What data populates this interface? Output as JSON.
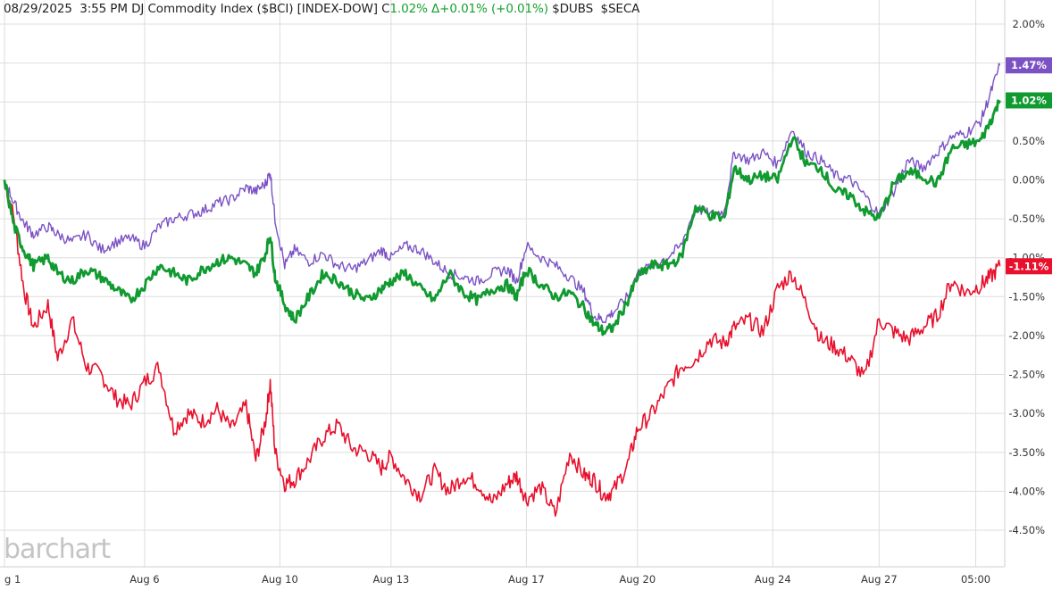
{
  "header": {
    "date": "08/29/2025",
    "time": "3:55 PM",
    "name": "DJ Commodity Index ($BCI)",
    "exchange": "[INDEX-DOW]",
    "close_label": "C",
    "close_value": "1.02%",
    "change_label": "Δ",
    "change_value": "+0.01% (+0.01%)",
    "compare1": "$DUBS",
    "compare2": "$SECA"
  },
  "watermark": "barchart",
  "colors": {
    "bci": "#109a30",
    "dubs": "#7b52c4",
    "seca": "#e8102c",
    "grid": "#dddddd",
    "axis_text": "#333333"
  },
  "chart_data": {
    "type": "line",
    "ylim": [
      -4.75,
      2.0
    ],
    "y_ticks": [
      "2.00%",
      "1.50%",
      "1.00%",
      "0.50%",
      "0.00%",
      "-0.50%",
      "-1.00%",
      "-1.50%",
      "-2.00%",
      "-2.50%",
      "-3.00%",
      "-3.50%",
      "-4.00%",
      "-4.50%"
    ],
    "y_tick_values": [
      2.0,
      1.5,
      1.0,
      0.5,
      0.0,
      -0.5,
      -1.0,
      -1.5,
      -2.0,
      -2.5,
      -3.0,
      -3.5,
      -4.0,
      -4.5
    ],
    "x_ticks": [
      "g 1",
      "Aug 6",
      "Aug 10",
      "Aug 13",
      "Aug 17",
      "Aug 20",
      "Aug 24",
      "Aug 27",
      "05:00"
    ],
    "x_tick_values": [
      0.0,
      1.45,
      2.85,
      4.0,
      5.4,
      6.55,
      7.95,
      9.05,
      10.05
    ],
    "xlim": [
      0.0,
      10.35
    ],
    "series": [
      {
        "key": "dubs",
        "name": "$DUBS",
        "end_label": "1.47%",
        "x": [
          0,
          0.1,
          0.2,
          0.3,
          0.45,
          0.55,
          0.7,
          0.85,
          1.0,
          1.15,
          1.3,
          1.45,
          1.6,
          1.75,
          1.9,
          2.05,
          2.2,
          2.35,
          2.5,
          2.6,
          2.7,
          2.75,
          2.8,
          2.9,
          3.0,
          3.15,
          3.3,
          3.45,
          3.6,
          3.75,
          3.9,
          4.0,
          4.15,
          4.3,
          4.45,
          4.6,
          4.75,
          4.9,
          5.05,
          5.2,
          5.3,
          5.4,
          5.55,
          5.7,
          5.85,
          6.0,
          6.1,
          6.2,
          6.3,
          6.45,
          6.55,
          6.7,
          6.85,
          7.0,
          7.15,
          7.3,
          7.45,
          7.55,
          7.7,
          7.85,
          8.0,
          8.15,
          8.3,
          8.45,
          8.6,
          8.75,
          8.9,
          9.05,
          9.2,
          9.35,
          9.5,
          9.65,
          9.8,
          9.95,
          10.1,
          10.2,
          10.3
        ],
        "values": [
          0.0,
          -0.3,
          -0.55,
          -0.7,
          -0.6,
          -0.7,
          -0.8,
          -0.7,
          -0.9,
          -0.8,
          -0.75,
          -0.85,
          -0.6,
          -0.5,
          -0.45,
          -0.4,
          -0.3,
          -0.25,
          -0.1,
          -0.15,
          -0.05,
          0.1,
          -0.5,
          -1.1,
          -0.9,
          -1.05,
          -0.95,
          -1.1,
          -1.15,
          -1.05,
          -0.9,
          -1.0,
          -0.85,
          -0.9,
          -1.05,
          -1.2,
          -1.25,
          -1.3,
          -1.2,
          -1.15,
          -1.3,
          -0.85,
          -1.0,
          -1.1,
          -1.25,
          -1.45,
          -1.75,
          -1.8,
          -1.7,
          -1.5,
          -1.2,
          -1.1,
          -1.0,
          -0.85,
          -0.35,
          -0.45,
          -0.4,
          0.35,
          0.25,
          0.35,
          0.2,
          0.65,
          0.35,
          0.25,
          0.05,
          0.0,
          -0.2,
          -0.45,
          -0.15,
          0.25,
          0.15,
          0.35,
          0.55,
          0.6,
          0.75,
          1.1,
          1.47
        ]
      },
      {
        "key": "bci",
        "name": "$BCI",
        "end_label": "1.02%",
        "x": [
          0,
          0.1,
          0.2,
          0.3,
          0.45,
          0.55,
          0.7,
          0.85,
          1.0,
          1.15,
          1.3,
          1.45,
          1.6,
          1.75,
          1.9,
          2.05,
          2.2,
          2.35,
          2.5,
          2.6,
          2.7,
          2.75,
          2.8,
          2.9,
          3.0,
          3.15,
          3.3,
          3.45,
          3.6,
          3.75,
          3.9,
          4.0,
          4.15,
          4.3,
          4.45,
          4.6,
          4.75,
          4.9,
          5.05,
          5.2,
          5.3,
          5.4,
          5.55,
          5.7,
          5.85,
          6.0,
          6.1,
          6.2,
          6.3,
          6.45,
          6.55,
          6.7,
          6.85,
          7.0,
          7.15,
          7.3,
          7.45,
          7.55,
          7.7,
          7.85,
          8.0,
          8.15,
          8.3,
          8.45,
          8.6,
          8.75,
          8.9,
          9.05,
          9.2,
          9.35,
          9.5,
          9.65,
          9.8,
          9.95,
          10.1,
          10.2,
          10.3
        ],
        "values": [
          0.0,
          -0.6,
          -0.9,
          -1.1,
          -1.0,
          -1.2,
          -1.3,
          -1.15,
          -1.25,
          -1.4,
          -1.55,
          -1.35,
          -1.1,
          -1.2,
          -1.3,
          -1.15,
          -1.05,
          -1.0,
          -1.1,
          -1.2,
          -0.95,
          -0.7,
          -1.25,
          -1.6,
          -1.8,
          -1.5,
          -1.2,
          -1.3,
          -1.45,
          -1.55,
          -1.4,
          -1.3,
          -1.2,
          -1.4,
          -1.55,
          -1.2,
          -1.45,
          -1.55,
          -1.4,
          -1.35,
          -1.5,
          -1.15,
          -1.35,
          -1.5,
          -1.45,
          -1.65,
          -1.85,
          -1.95,
          -1.9,
          -1.55,
          -1.25,
          -1.1,
          -1.1,
          -1.0,
          -0.35,
          -0.45,
          -0.5,
          0.15,
          0.0,
          0.05,
          0.0,
          0.55,
          0.2,
          0.15,
          -0.15,
          -0.2,
          -0.4,
          -0.5,
          -0.05,
          0.1,
          0.05,
          -0.05,
          0.4,
          0.45,
          0.5,
          0.75,
          1.02
        ]
      },
      {
        "key": "seca",
        "name": "$SECA",
        "end_label": "-1.11%",
        "x": [
          0,
          0.1,
          0.2,
          0.3,
          0.45,
          0.55,
          0.7,
          0.85,
          1.0,
          1.15,
          1.3,
          1.45,
          1.6,
          1.75,
          1.9,
          2.05,
          2.2,
          2.35,
          2.5,
          2.6,
          2.7,
          2.75,
          2.8,
          2.9,
          3.0,
          3.15,
          3.3,
          3.45,
          3.6,
          3.75,
          3.9,
          4.0,
          4.15,
          4.3,
          4.45,
          4.6,
          4.75,
          4.9,
          5.05,
          5.2,
          5.3,
          5.4,
          5.55,
          5.7,
          5.85,
          6.0,
          6.1,
          6.2,
          6.3,
          6.45,
          6.55,
          6.7,
          6.85,
          7.0,
          7.15,
          7.3,
          7.45,
          7.55,
          7.7,
          7.85,
          8.0,
          8.15,
          8.3,
          8.45,
          8.6,
          8.75,
          8.9,
          9.05,
          9.2,
          9.35,
          9.5,
          9.65,
          9.8,
          9.95,
          10.1,
          10.2,
          10.3
        ],
        "values": [
          0.0,
          -0.5,
          -1.4,
          -1.9,
          -1.6,
          -2.3,
          -1.8,
          -2.4,
          -2.5,
          -2.8,
          -2.9,
          -2.6,
          -2.4,
          -3.2,
          -3.0,
          -3.1,
          -2.95,
          -3.2,
          -2.9,
          -3.6,
          -3.1,
          -2.6,
          -3.5,
          -3.9,
          -3.85,
          -3.6,
          -3.3,
          -3.15,
          -3.45,
          -3.5,
          -3.7,
          -3.55,
          -3.85,
          -4.05,
          -3.75,
          -4.0,
          -3.8,
          -3.9,
          -4.15,
          -3.9,
          -3.8,
          -4.1,
          -3.95,
          -4.3,
          -3.5,
          -3.8,
          -3.85,
          -4.05,
          -4.0,
          -3.65,
          -3.2,
          -3.0,
          -2.7,
          -2.4,
          -2.3,
          -2.05,
          -2.1,
          -1.9,
          -1.8,
          -1.95,
          -1.4,
          -1.2,
          -1.6,
          -2.05,
          -2.15,
          -2.3,
          -2.55,
          -1.8,
          -1.95,
          -2.05,
          -1.9,
          -1.75,
          -1.3,
          -1.45,
          -1.35,
          -1.25,
          -1.11
        ]
      }
    ]
  }
}
